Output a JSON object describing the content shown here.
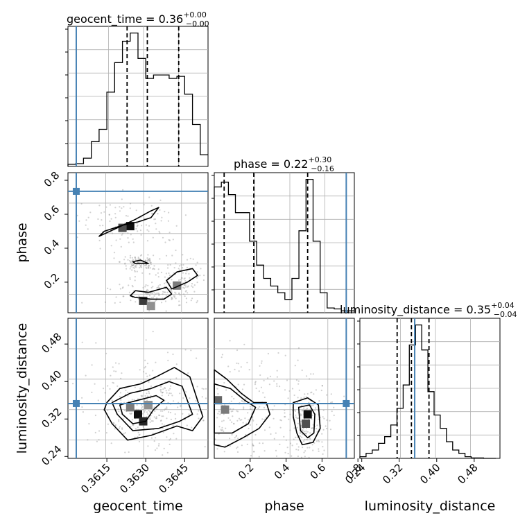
{
  "chart_data": {
    "type": "corner",
    "parameters": [
      "geocent_time",
      "phase",
      "luminosity_distance"
    ],
    "truth_color": "#4682b4",
    "panels": [
      {
        "id": "hist-geocent_time",
        "kind": "histogram",
        "param": "geocent_time",
        "title": {
          "name": "geocent_time",
          "median": "0.36",
          "plus": "+0.00",
          "minus": "−0.00"
        },
        "xlim": [
          0.36,
          0.3654
        ],
        "bins": {
          "start": 0.36,
          "width": 0.0003,
          "counts": [
            0.3,
            0.4,
            1.2,
            3.6,
            5.4,
            10.8,
            15.1,
            18.2,
            19.4,
            15.7,
            12.8,
            13.3,
            13.3,
            12.8,
            13.1,
            10.5,
            6.1,
            1.7
          ]
        },
        "quantiles": [
          0.36228,
          0.36306,
          0.36427
        ],
        "truth": 0.36032
      },
      {
        "id": "hist-phase",
        "kind": "histogram",
        "param": "phase",
        "title": {
          "name": "phase",
          "median": "0.22",
          "plus": "+0.30",
          "minus": "−0.16"
        },
        "xlim": [
          0.0,
          0.78
        ],
        "bins": {
          "start": 0.0,
          "width": 0.0393,
          "counts": [
            13.2,
            13.7,
            12.4,
            10.5,
            10.5,
            7.5,
            5.0,
            3.6,
            2.8,
            2.1,
            1.4,
            3.6,
            8.6,
            14.0,
            7.5,
            2.1,
            0.5,
            0.4,
            0.2,
            0.2
          ]
        },
        "quantiles": [
          0.055,
          0.22,
          0.52
        ],
        "truth": 0.735
      },
      {
        "id": "hist-luminosity_distance",
        "kind": "histogram",
        "param": "luminosity_distance",
        "title": {
          "name": "luminosity_distance",
          "median": "0.35",
          "plus": "+0.04",
          "minus": "−0.04"
        },
        "xlim": [
          0.236,
          0.535
        ],
        "bins": {
          "start": 0.236,
          "width": 0.0132,
          "counts": [
            0.2,
            0.6,
            1.0,
            1.8,
            2.6,
            4.0,
            6.0,
            8.8,
            13.6,
            16.0,
            13.0,
            8.0,
            5.2,
            3.6,
            2.0,
            1.0,
            0.6,
            0.2,
            0.05,
            0.05,
            0.0,
            0.0
          ]
        },
        "quantiles": [
          0.3155,
          0.346,
          0.3835
        ],
        "truth": 0.353
      },
      {
        "id": "2d-geocent_time-phase",
        "kind": "2d",
        "x_param": "geocent_time",
        "y_param": "phase",
        "xlim": [
          0.36,
          0.3654
        ],
        "ylim": [
          0.02,
          0.845
        ],
        "truth": [
          0.36032,
          0.735
        ],
        "contours": [
          [
            [
              0.3621,
              0.535
            ],
            [
              0.3627,
              0.555
            ],
            [
              0.3632,
              0.58
            ],
            [
              0.3635,
              0.64
            ],
            [
              0.3632,
              0.62
            ],
            [
              0.3626,
              0.57
            ],
            [
              0.3619,
              0.52
            ],
            [
              0.3612,
              0.47
            ],
            [
              0.3614,
              0.5
            ]
          ],
          [
            [
              0.3626,
              0.11
            ],
            [
              0.3632,
              0.1
            ],
            [
              0.3637,
              0.1
            ],
            [
              0.364,
              0.13
            ],
            [
              0.3638,
              0.17
            ],
            [
              0.3631,
              0.14
            ],
            [
              0.3626,
              0.15
            ],
            [
              0.3624,
              0.12
            ]
          ],
          [
            [
              0.364,
              0.16
            ],
            [
              0.3646,
              0.2
            ],
            [
              0.365,
              0.24
            ],
            [
              0.3648,
              0.28
            ],
            [
              0.3642,
              0.26
            ],
            [
              0.3638,
              0.21
            ]
          ],
          [
            [
              0.3626,
              0.31
            ],
            [
              0.3631,
              0.31
            ],
            [
              0.3628,
              0.33
            ],
            [
              0.3625,
              0.32
            ]
          ]
        ],
        "density_cells": [
          {
            "x": 0.3624,
            "y": 0.53,
            "level": 1.0
          },
          {
            "x": 0.3621,
            "y": 0.52,
            "level": 0.7
          },
          {
            "x": 0.3629,
            "y": 0.09,
            "level": 0.8
          },
          {
            "x": 0.3632,
            "y": 0.06,
            "level": 0.4
          },
          {
            "x": 0.3642,
            "y": 0.18,
            "level": 0.5
          }
        ]
      },
      {
        "id": "2d-geocent_time-luminosity_distance",
        "kind": "2d",
        "x_param": "geocent_time",
        "y_param": "luminosity_distance",
        "xlim": [
          0.36,
          0.3654
        ],
        "ylim": [
          0.236,
          0.535
        ],
        "truth": [
          0.36032,
          0.353
        ],
        "contours": [
          [
            [
              0.3615,
              0.355
            ],
            [
              0.362,
              0.385
            ],
            [
              0.3628,
              0.395
            ],
            [
              0.3634,
              0.41
            ],
            [
              0.3641,
              0.43
            ],
            [
              0.3647,
              0.41
            ],
            [
              0.3652,
              0.325
            ],
            [
              0.3648,
              0.295
            ],
            [
              0.3642,
              0.305
            ],
            [
              0.3632,
              0.285
            ],
            [
              0.3623,
              0.275
            ],
            [
              0.3617,
              0.31
            ],
            [
              0.3614,
              0.34
            ]
          ],
          [
            [
              0.3617,
              0.355
            ],
            [
              0.3624,
              0.375
            ],
            [
              0.3632,
              0.385
            ],
            [
              0.3639,
              0.4
            ],
            [
              0.3644,
              0.39
            ],
            [
              0.3648,
              0.33
            ],
            [
              0.3643,
              0.315
            ],
            [
              0.3635,
              0.3
            ],
            [
              0.3625,
              0.295
            ],
            [
              0.3619,
              0.33
            ]
          ],
          [
            [
              0.362,
              0.35
            ],
            [
              0.3627,
              0.36
            ],
            [
              0.3634,
              0.37
            ],
            [
              0.3637,
              0.36
            ],
            [
              0.3633,
              0.34
            ],
            [
              0.363,
              0.315
            ],
            [
              0.3625,
              0.31
            ],
            [
              0.3621,
              0.33
            ]
          ]
        ],
        "density_cells": [
          {
            "x": 0.3627,
            "y": 0.33,
            "level": 1.0
          },
          {
            "x": 0.3629,
            "y": 0.315,
            "level": 0.9
          },
          {
            "x": 0.3624,
            "y": 0.345,
            "level": 0.5
          },
          {
            "x": 0.3631,
            "y": 0.35,
            "level": 0.4
          }
        ]
      },
      {
        "id": "2d-phase-luminosity_distance",
        "kind": "2d",
        "x_param": "phase",
        "y_param": "luminosity_distance",
        "xlim": [
          0.0,
          0.78
        ],
        "ylim": [
          0.236,
          0.535
        ],
        "truth": [
          0.735,
          0.353
        ],
        "contours": [
          [
            [
              0.0,
              0.425
            ],
            [
              0.07,
              0.405
            ],
            [
              0.15,
              0.375
            ],
            [
              0.22,
              0.355
            ],
            [
              0.29,
              0.355
            ],
            [
              0.31,
              0.33
            ],
            [
              0.25,
              0.3
            ],
            [
              0.16,
              0.28
            ],
            [
              0.06,
              0.26
            ],
            [
              0.0,
              0.265
            ]
          ],
          [
            [
              0.0,
              0.395
            ],
            [
              0.09,
              0.385
            ],
            [
              0.17,
              0.36
            ],
            [
              0.23,
              0.345
            ],
            [
              0.19,
              0.31
            ],
            [
              0.1,
              0.29
            ],
            [
              0.0,
              0.29
            ]
          ],
          [
            [
              0.44,
              0.355
            ],
            [
              0.52,
              0.365
            ],
            [
              0.58,
              0.35
            ],
            [
              0.59,
              0.3
            ],
            [
              0.55,
              0.27
            ],
            [
              0.49,
              0.265
            ],
            [
              0.46,
              0.29
            ],
            [
              0.44,
              0.325
            ]
          ],
          [
            [
              0.47,
              0.345
            ],
            [
              0.53,
              0.35
            ],
            [
              0.56,
              0.33
            ],
            [
              0.555,
              0.29
            ],
            [
              0.52,
              0.28
            ],
            [
              0.48,
              0.295
            ]
          ]
        ],
        "density_cells": [
          {
            "x": 0.02,
            "y": 0.36,
            "level": 0.6
          },
          {
            "x": 0.06,
            "y": 0.34,
            "level": 0.5
          },
          {
            "x": 0.52,
            "y": 0.33,
            "level": 1.0
          },
          {
            "x": 0.51,
            "y": 0.31,
            "level": 0.7
          }
        ]
      }
    ],
    "tick_labels": {
      "phase_row_y": [
        "0.2",
        "0.4",
        "0.6",
        "0.8"
      ],
      "luminosity_distance_row_y": [
        "0.24",
        "0.32",
        "0.40",
        "0.48"
      ],
      "geocent_time_x": [
        "0.3615",
        "0.3630",
        "0.3645"
      ],
      "phase_x": [
        "0.2",
        "0.4",
        "0.6",
        "0.8"
      ],
      "luminosity_distance_x": [
        "0.24",
        "0.32",
        "0.40",
        "0.48"
      ]
    },
    "axis_labels": {
      "x": [
        "geocent_time",
        "phase",
        "luminosity_distance"
      ],
      "y": [
        "phase",
        "luminosity_distance"
      ]
    }
  }
}
